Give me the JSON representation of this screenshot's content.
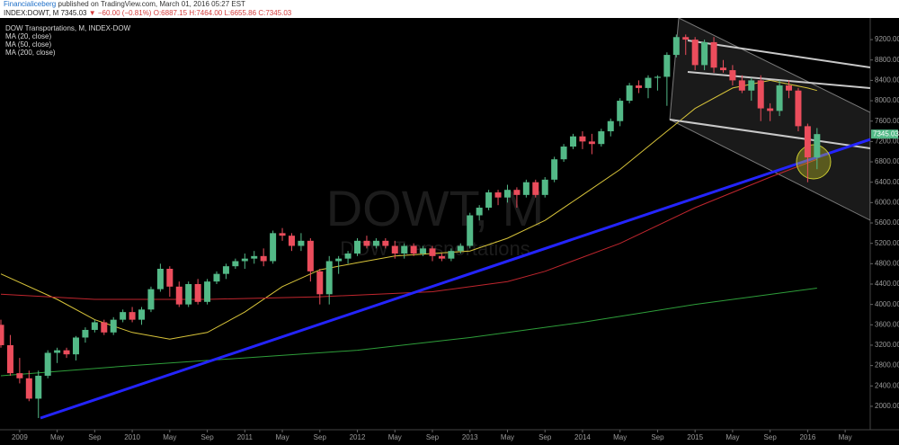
{
  "header": {
    "publisher": "Financialiceberg",
    "published": "published on TradingView.com, March 01, 2016 05:27 EST",
    "symbol": "INDEX:DOWT, M",
    "last": "7345.03",
    "change": "▼ −60.00 (−0.81%)",
    "open": "O:6887.15",
    "high": "H:7464.00",
    "low": "L:6655.86",
    "close": "C:7345.03"
  },
  "chart_data": {
    "type": "candlestick",
    "title": "DOW Transportations, M, INDEX-DOW",
    "watermark": "DOWT, M",
    "watermark_subtitle": "DOW Transportations",
    "up_color": "#53b987",
    "down_color": "#eb4d5c",
    "x": [
      "2008-11",
      "2008-12",
      "2009-01",
      "2009-02",
      "2009-03",
      "2009-04",
      "2009-05",
      "2009-06",
      "2009-07",
      "2009-08",
      "2009-09",
      "2009-10",
      "2009-11",
      "2009-12",
      "2010-01",
      "2010-02",
      "2010-03",
      "2010-04",
      "2010-05",
      "2010-06",
      "2010-07",
      "2010-08",
      "2010-09",
      "2010-10",
      "2010-11",
      "2010-12",
      "2011-01",
      "2011-02",
      "2011-03",
      "2011-04",
      "2011-05",
      "2011-06",
      "2011-07",
      "2011-08",
      "2011-09",
      "2011-10",
      "2011-11",
      "2011-12",
      "2012-01",
      "2012-02",
      "2012-03",
      "2012-04",
      "2012-05",
      "2012-06",
      "2012-07",
      "2012-08",
      "2012-09",
      "2012-10",
      "2012-11",
      "2012-12",
      "2013-01",
      "2013-02",
      "2013-03",
      "2013-04",
      "2013-05",
      "2013-06",
      "2013-07",
      "2013-08",
      "2013-09",
      "2013-10",
      "2013-11",
      "2013-12",
      "2014-01",
      "2014-02",
      "2014-03",
      "2014-04",
      "2014-05",
      "2014-06",
      "2014-07",
      "2014-08",
      "2014-09",
      "2014-10",
      "2014-11",
      "2014-12",
      "2015-01",
      "2015-02",
      "2015-03",
      "2015-04",
      "2015-05",
      "2015-06",
      "2015-07",
      "2015-08",
      "2015-09",
      "2015-10",
      "2015-11",
      "2015-12",
      "2016-01",
      "2016-02"
    ],
    "open": [
      3600,
      3200,
      2650,
      2550,
      2150,
      2600,
      3050,
      3100,
      3020,
      3350,
      3500,
      3650,
      3450,
      3700,
      3850,
      3700,
      3900,
      4300,
      4700,
      4350,
      4000,
      4400,
      4050,
      4450,
      4600,
      4750,
      4850,
      4900,
      4950,
      4850,
      5400,
      5350,
      5150,
      5250,
      4650,
      4200,
      4850,
      4900,
      5000,
      5250,
      5150,
      5250,
      5150,
      5000,
      5150,
      5000,
      5100,
      4950,
      4900,
      5050,
      5150,
      5750,
      5900,
      6200,
      6100,
      6250,
      6150,
      6400,
      6150,
      6450,
      6850,
      7100,
      7300,
      7200,
      7150,
      7400,
      7600,
      8000,
      8300,
      8250,
      8450,
      8470,
      8900,
      9250,
      9200,
      8700,
      9150,
      8650,
      8600,
      8400,
      8200,
      8400,
      7850,
      7800,
      8300,
      8200,
      7500,
      6887.15
    ],
    "high": [
      3700,
      3400,
      2950,
      2700,
      2700,
      3100,
      3150,
      3150,
      3380,
      3550,
      3700,
      3700,
      3750,
      3900,
      3950,
      3950,
      4350,
      4800,
      4750,
      4450,
      4450,
      4500,
      4500,
      4650,
      4800,
      4900,
      5000,
      5050,
      5100,
      5450,
      5500,
      5400,
      5400,
      5300,
      4700,
      4950,
      4950,
      5050,
      5300,
      5350,
      5300,
      5300,
      5250,
      5200,
      5200,
      5150,
      5150,
      5000,
      5100,
      5200,
      5800,
      5950,
      6250,
      6250,
      6350,
      6300,
      6450,
      6450,
      6500,
      6900,
      7150,
      7350,
      7400,
      7350,
      7450,
      7650,
      8050,
      8350,
      8400,
      8500,
      8500,
      8950,
      9300,
      9300,
      9250,
      9200,
      9250,
      8800,
      8700,
      8500,
      8450,
      8500,
      7950,
      8400,
      8400,
      8250,
      7550,
      7464
    ],
    "low": [
      3150,
      2600,
      2450,
      2100,
      1770,
      2550,
      2850,
      2950,
      2900,
      3250,
      3450,
      3400,
      3400,
      3650,
      3650,
      3600,
      3850,
      4250,
      4150,
      3950,
      3950,
      4000,
      4000,
      4400,
      4500,
      4700,
      4700,
      4800,
      4750,
      4800,
      5250,
      5050,
      5050,
      4450,
      4000,
      4000,
      4600,
      4800,
      4950,
      5100,
      5100,
      5100,
      4900,
      4900,
      4950,
      4950,
      4850,
      4850,
      4850,
      5000,
      5100,
      5650,
      5850,
      5950,
      6000,
      5900,
      6100,
      6100,
      6100,
      6400,
      6800,
      7050,
      7050,
      6950,
      7100,
      7300,
      7500,
      7950,
      8150,
      8050,
      8200,
      7900,
      8850,
      8900,
      8600,
      8600,
      8550,
      8550,
      8300,
      8150,
      8000,
      7600,
      7600,
      7700,
      8050,
      7400,
      6400,
      6655.86
    ],
    "close": [
      3200,
      2650,
      2550,
      2150,
      2600,
      3050,
      3100,
      3020,
      3350,
      3500,
      3650,
      3450,
      3700,
      3850,
      3700,
      3900,
      4300,
      4700,
      4350,
      4000,
      4400,
      4050,
      4450,
      4600,
      4750,
      4850,
      4900,
      4950,
      4850,
      5400,
      5350,
      5150,
      5250,
      4650,
      4200,
      4850,
      4900,
      5000,
      5250,
      5150,
      5250,
      5150,
      5000,
      5150,
      5000,
      5100,
      4950,
      4900,
      5050,
      5150,
      5750,
      5900,
      6200,
      6100,
      6250,
      6150,
      6400,
      6150,
      6450,
      6850,
      7100,
      7300,
      7200,
      7150,
      7400,
      7600,
      8000,
      8300,
      8250,
      8450,
      8470,
      8900,
      9250,
      9200,
      8700,
      9150,
      8650,
      8600,
      8400,
      8200,
      8400,
      7850,
      7800,
      8300,
      8200,
      7500,
      6887.15,
      7345.03
    ],
    "series": [
      {
        "name": "MA (20, close)",
        "color": "#d8c43a",
        "x": [
          "2008-11",
          "2009-05",
          "2009-09",
          "2010-01",
          "2010-05",
          "2010-09",
          "2011-01",
          "2011-05",
          "2011-09",
          "2012-01",
          "2012-05",
          "2012-09",
          "2013-01",
          "2013-05",
          "2013-09",
          "2014-01",
          "2014-05",
          "2014-09",
          "2015-01",
          "2015-05",
          "2015-09",
          "2016-01",
          "2016-02"
        ],
        "values": [
          4600,
          4100,
          3700,
          3450,
          3320,
          3450,
          3850,
          4350,
          4680,
          4820,
          4950,
          5000,
          5050,
          5300,
          5650,
          6150,
          6650,
          7250,
          7850,
          8250,
          8400,
          8250,
          8200
        ]
      },
      {
        "name": "MA (50, close)",
        "color": "#c0262e",
        "x": [
          "2008-11",
          "2009-09",
          "2010-09",
          "2011-09",
          "2012-09",
          "2013-05",
          "2013-09",
          "2014-05",
          "2015-01",
          "2015-09",
          "2016-02"
        ],
        "values": [
          4200,
          4100,
          4100,
          4150,
          4250,
          4450,
          4650,
          5200,
          5900,
          6500,
          6850
        ]
      },
      {
        "name": "MA (200, close)",
        "color": "#2e9e3a",
        "x": [
          "2008-11",
          "2010-01",
          "2011-01",
          "2012-01",
          "2013-01",
          "2014-01",
          "2015-01",
          "2016-02"
        ],
        "values": [
          2600,
          2800,
          2950,
          3100,
          3350,
          3650,
          4000,
          4320
        ]
      }
    ],
    "xlim": [
      "2008-11",
      "2016-07"
    ],
    "xticks": [
      {
        "value": "2009-01",
        "label": "2009"
      },
      {
        "value": "2009-05",
        "label": "May"
      },
      {
        "value": "2009-09",
        "label": "Sep"
      },
      {
        "value": "2010-01",
        "label": "2010"
      },
      {
        "value": "2010-05",
        "label": "May"
      },
      {
        "value": "2010-09",
        "label": "Sep"
      },
      {
        "value": "2011-01",
        "label": "2011"
      },
      {
        "value": "2011-05",
        "label": "May"
      },
      {
        "value": "2011-09",
        "label": "Sep"
      },
      {
        "value": "2012-01",
        "label": "2012"
      },
      {
        "value": "2012-05",
        "label": "May"
      },
      {
        "value": "2012-09",
        "label": "Sep"
      },
      {
        "value": "2013-01",
        "label": "2013"
      },
      {
        "value": "2013-05",
        "label": "May"
      },
      {
        "value": "2013-09",
        "label": "Sep"
      },
      {
        "value": "2014-01",
        "label": "2014"
      },
      {
        "value": "2014-05",
        "label": "May"
      },
      {
        "value": "2014-09",
        "label": "Sep"
      },
      {
        "value": "2015-01",
        "label": "2015"
      },
      {
        "value": "2015-05",
        "label": "May"
      },
      {
        "value": "2015-09",
        "label": "Sep"
      },
      {
        "value": "2016-01",
        "label": "2016"
      },
      {
        "value": "2016-05",
        "label": "May"
      }
    ],
    "ylim": [
      1540,
      9625
    ],
    "yticks": [
      {
        "value": 2000,
        "label": "2000.00"
      },
      {
        "value": 2400,
        "label": "2400.00"
      },
      {
        "value": 2800,
        "label": "2800.00"
      },
      {
        "value": 3200,
        "label": "3200.00"
      },
      {
        "value": 3600,
        "label": "3600.00"
      },
      {
        "value": 4000,
        "label": "4000.00"
      },
      {
        "value": 4400,
        "label": "4400.00"
      },
      {
        "value": 4800,
        "label": "4800.00"
      },
      {
        "value": 5200,
        "label": "5200.00"
      },
      {
        "value": 5600,
        "label": "5600.00"
      },
      {
        "value": 6000,
        "label": "6000.00"
      },
      {
        "value": 6400,
        "label": "6400.00"
      },
      {
        "value": 6800,
        "label": "6800.00"
      },
      {
        "value": 7200,
        "label": "7200.00"
      },
      {
        "value": 7600,
        "label": "7600.00"
      },
      {
        "value": 8000,
        "label": "8000.00"
      },
      {
        "value": 8400,
        "label": "8400.00"
      },
      {
        "value": 8800,
        "label": "8800.00"
      },
      {
        "value": 9200,
        "label": "9200.00"
      }
    ],
    "grid": false
  }
}
